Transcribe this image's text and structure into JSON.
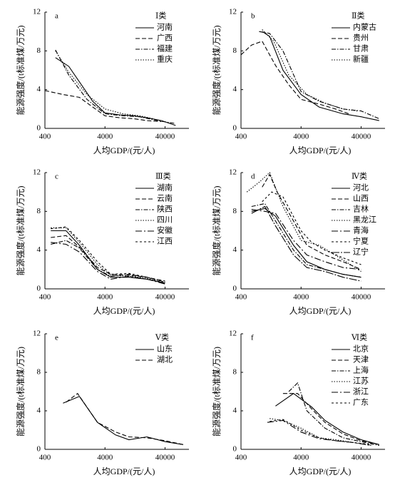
{
  "chart_data": [
    {
      "type": "line",
      "panel": "a",
      "legend_title": "Ⅰ类",
      "legend": "upper right",
      "xlabel": "人均GDP/(元/人)",
      "ylabel": "能源强度/(t标准煤/万元)",
      "xscale": "log",
      "xlim": [
        400,
        100000
      ],
      "ylim": [
        0,
        12
      ],
      "xticks": [
        400,
        4000,
        40000
      ],
      "yticks": [
        0,
        4,
        8,
        12
      ],
      "color": "#000000",
      "series": [
        {
          "name": "河南",
          "x": [
            600,
            1000,
            1500,
            2500,
            4000,
            7000,
            12000,
            20000,
            35000,
            60000
          ],
          "values": [
            7.3,
            6.4,
            4.8,
            2.8,
            1.6,
            1.4,
            1.3,
            1.1,
            0.8,
            0.3
          ]
        },
        {
          "name": "广西",
          "x": [
            400,
            800,
            1500,
            2500,
            4000,
            7000,
            12000,
            20000,
            35000
          ],
          "values": [
            3.9,
            3.5,
            3.2,
            2.2,
            1.3,
            1.1,
            1.0,
            0.8,
            0.7
          ]
        },
        {
          "name": "福建",
          "x": [
            600,
            1000,
            2000,
            4000,
            8000,
            15000,
            30000,
            60000
          ],
          "values": [
            8.1,
            5.5,
            3.0,
            1.5,
            1.3,
            1.2,
            0.8,
            0.5
          ]
        },
        {
          "name": "重庆",
          "x": [
            600,
            1000,
            2000,
            4000,
            8000,
            15000,
            25000
          ],
          "values": [
            8.0,
            5.8,
            3.5,
            2.0,
            1.5,
            1.3,
            1.0
          ]
        }
      ]
    },
    {
      "type": "line",
      "panel": "b",
      "legend_title": "Ⅱ类",
      "legend": "upper right",
      "xlabel": "人均GDP/(元/人)",
      "ylabel": "能源强度/(t标准煤/万元)",
      "xscale": "log",
      "xlim": [
        400,
        100000
      ],
      "ylim": [
        0,
        12
      ],
      "xticks": [
        400,
        4000,
        40000
      ],
      "yticks": [
        0,
        4,
        8,
        12
      ],
      "color": "#000000",
      "series": [
        {
          "name": "内蒙古",
          "x": [
            900,
            1200,
            2000,
            4000,
            8000,
            20000,
            40000,
            80000
          ],
          "values": [
            10.0,
            9.5,
            6.0,
            3.5,
            2.2,
            1.5,
            1.2,
            0.8
          ]
        },
        {
          "name": "贵州",
          "x": [
            400,
            600,
            900,
            1500,
            2500,
            4000,
            8000,
            15000,
            25000
          ],
          "values": [
            7.6,
            8.6,
            9.0,
            6.5,
            4.5,
            3.0,
            2.5,
            2.0,
            1.5
          ]
        },
        {
          "name": "甘肃",
          "x": [
            800,
            1200,
            2000,
            4000,
            8000,
            20000,
            40000,
            80000
          ],
          "values": [
            10.0,
            9.8,
            8.0,
            3.8,
            2.8,
            2.0,
            1.8,
            1.0
          ]
        },
        {
          "name": "新疆",
          "x": [
            900,
            1400,
            2500,
            5000,
            10000,
            20000,
            35000
          ],
          "values": [
            10.2,
            9.0,
            5.5,
            3.5,
            2.6,
            2.0,
            1.8
          ]
        }
      ]
    },
    {
      "type": "line",
      "panel": "c",
      "legend_title": "Ⅲ类",
      "legend": "upper right",
      "xlabel": "人均GDP/(元/人)",
      "ylabel": "能源强度/(t标准煤/万元)",
      "xscale": "log",
      "xlim": [
        400,
        100000
      ],
      "ylim": [
        0,
        12
      ],
      "xticks": [
        400,
        4000,
        40000
      ],
      "yticks": [
        0,
        4,
        8,
        12
      ],
      "color": "#000000",
      "series": [
        {
          "name": "湖南",
          "x": [
            500,
            900,
            1500,
            3000,
            5000,
            10000,
            20000,
            40000
          ],
          "values": [
            6.0,
            6.0,
            4.5,
            2.0,
            1.2,
            1.2,
            1.0,
            0.6
          ]
        },
        {
          "name": "云南",
          "x": [
            500,
            900,
            1500,
            3000,
            5000,
            10000,
            20000,
            40000
          ],
          "values": [
            5.3,
            5.5,
            4.3,
            2.2,
            1.5,
            1.4,
            1.2,
            0.8
          ]
        },
        {
          "name": "陕西",
          "x": [
            500,
            900,
            1500,
            3000,
            5000,
            10000,
            20000,
            40000
          ],
          "values": [
            4.6,
            5.0,
            4.2,
            2.0,
            1.3,
            1.5,
            1.2,
            0.7
          ]
        },
        {
          "name": "四川",
          "x": [
            500,
            900,
            1500,
            3000,
            5000,
            10000,
            20000,
            40000
          ],
          "values": [
            6.3,
            6.3,
            4.8,
            2.5,
            1.4,
            1.3,
            1.1,
            0.5
          ]
        },
        {
          "name": "安徽",
          "x": [
            500,
            900,
            1500,
            3000,
            5000,
            10000,
            20000,
            40000
          ],
          "values": [
            4.8,
            4.6,
            3.8,
            1.8,
            1.0,
            1.3,
            1.0,
            0.5
          ]
        },
        {
          "name": "江西",
          "x": [
            500,
            900,
            1500,
            3000,
            5000,
            10000,
            20000,
            40000
          ],
          "values": [
            6.2,
            6.4,
            5.0,
            2.8,
            1.5,
            1.6,
            1.2,
            0.6
          ]
        }
      ]
    },
    {
      "type": "line",
      "panel": "d",
      "legend_title": "Ⅳ类",
      "legend": "upper right",
      "xlabel": "人均GDP/(元/人)",
      "ylabel": "能源强度/(t标准煤/万元)",
      "xscale": "log",
      "xlim": [
        400,
        100000
      ],
      "ylim": [
        0,
        12
      ],
      "xticks": [
        400,
        4000,
        40000
      ],
      "yticks": [
        0,
        4,
        8,
        12
      ],
      "color": "#000000",
      "series": [
        {
          "name": "河北",
          "x": [
            600,
            1000,
            1500,
            3000,
            5000,
            10000,
            20000,
            40000
          ],
          "values": [
            8.0,
            8.3,
            7.5,
            4.5,
            2.8,
            2.0,
            1.5,
            1.2
          ]
        },
        {
          "name": "山西",
          "x": [
            900,
            1200,
            1600,
            3000,
            5000,
            10000,
            20000,
            40000
          ],
          "values": [
            10.5,
            11.8,
            10.0,
            7.0,
            4.5,
            3.5,
            2.8,
            2.0
          ]
        },
        {
          "name": "吉林",
          "x": [
            600,
            1000,
            1500,
            3000,
            5000,
            10000,
            20000,
            40000
          ],
          "values": [
            8.5,
            8.8,
            7.0,
            4.0,
            2.5,
            2.0,
            1.5,
            1.2
          ]
        },
        {
          "name": "黑龙江",
          "x": [
            500,
            800,
            1200,
            2000,
            4000,
            8000,
            20000,
            40000
          ],
          "values": [
            10.0,
            11.0,
            12.0,
            8.5,
            5.0,
            4.5,
            3.0,
            1.8
          ]
        },
        {
          "name": "青海",
          "x": [
            600,
            1000,
            1500,
            3000,
            5000,
            10000,
            20000,
            40000
          ],
          "values": [
            8.2,
            8.0,
            7.8,
            5.0,
            3.5,
            2.8,
            2.2,
            2.0
          ]
        },
        {
          "name": "宁夏",
          "x": [
            900,
            1300,
            2000,
            4000,
            6000,
            10000,
            20000,
            40000
          ],
          "values": [
            9.0,
            10.0,
            9.5,
            6.0,
            4.8,
            4.0,
            3.2,
            2.5
          ]
        },
        {
          "name": "辽宁",
          "x": [
            600,
            1000,
            1500,
            3000,
            5000,
            10000,
            20000,
            40000
          ],
          "values": [
            7.8,
            8.5,
            6.5,
            3.5,
            2.2,
            1.8,
            1.2,
            0.8
          ]
        }
      ]
    },
    {
      "type": "line",
      "panel": "e",
      "legend_title": "Ⅴ类",
      "legend": "upper right",
      "xlabel": "人均GDP/(元/人)",
      "ylabel": "能源强度/(t标准煤/万元)",
      "xscale": "log",
      "xlim": [
        400,
        100000
      ],
      "ylim": [
        0,
        12
      ],
      "xticks": [
        400,
        4000,
        40000
      ],
      "yticks": [
        0,
        4,
        8,
        12
      ],
      "color": "#000000",
      "series": [
        {
          "name": "山东",
          "x": [
            800,
            1500,
            3000,
            6000,
            10000,
            20000,
            40000,
            80000
          ],
          "values": [
            4.8,
            5.5,
            2.8,
            1.5,
            1.0,
            1.3,
            0.8,
            0.5
          ]
        },
        {
          "name": "湖北",
          "x": [
            900,
            1400,
            3000,
            6000,
            10000,
            20000,
            40000,
            80000
          ],
          "values": [
            4.9,
            5.8,
            2.8,
            1.8,
            1.3,
            1.2,
            0.9,
            0.5
          ]
        }
      ]
    },
    {
      "type": "line",
      "panel": "f",
      "legend_title": "Ⅵ类",
      "legend": "upper right",
      "xlabel": "人均GDP/(元/人)",
      "ylabel": "能源强度/(t标准煤/万元)",
      "xscale": "log",
      "xlim": [
        400,
        100000
      ],
      "ylim": [
        0,
        12
      ],
      "xticks": [
        400,
        4000,
        40000
      ],
      "yticks": [
        0,
        4,
        8,
        12
      ],
      "color": "#000000",
      "series": [
        {
          "name": "北京",
          "x": [
            1500,
            3000,
            6000,
            10000,
            20000,
            40000,
            80000
          ],
          "values": [
            4.5,
            5.8,
            4.4,
            3.0,
            1.8,
            1.0,
            0.5
          ]
        },
        {
          "name": "天津",
          "x": [
            2000,
            3500,
            6000,
            10000,
            20000,
            40000,
            80000
          ],
          "values": [
            5.8,
            5.8,
            4.2,
            2.8,
            1.6,
            0.9,
            0.5
          ]
        },
        {
          "name": "上海",
          "x": [
            2500,
            3500,
            5000,
            10000,
            20000,
            40000,
            80000
          ],
          "values": [
            6.0,
            6.9,
            4.0,
            2.2,
            1.2,
            0.8,
            0.4
          ]
        },
        {
          "name": "江苏",
          "x": [
            1200,
            2000,
            4000,
            8000,
            15000,
            30000,
            60000
          ],
          "values": [
            3.2,
            3.0,
            2.2,
            1.2,
            1.0,
            0.7,
            0.4
          ]
        },
        {
          "name": "浙江",
          "x": [
            1100,
            2000,
            4000,
            8000,
            15000,
            30000,
            60000
          ],
          "values": [
            2.8,
            3.0,
            1.8,
            1.1,
            0.9,
            0.7,
            0.4
          ]
        },
        {
          "name": "广东",
          "x": [
            1200,
            2000,
            4000,
            8000,
            15000,
            30000,
            60000
          ],
          "values": [
            2.9,
            3.1,
            2.0,
            1.2,
            0.9,
            0.7,
            0.5
          ]
        }
      ]
    }
  ]
}
